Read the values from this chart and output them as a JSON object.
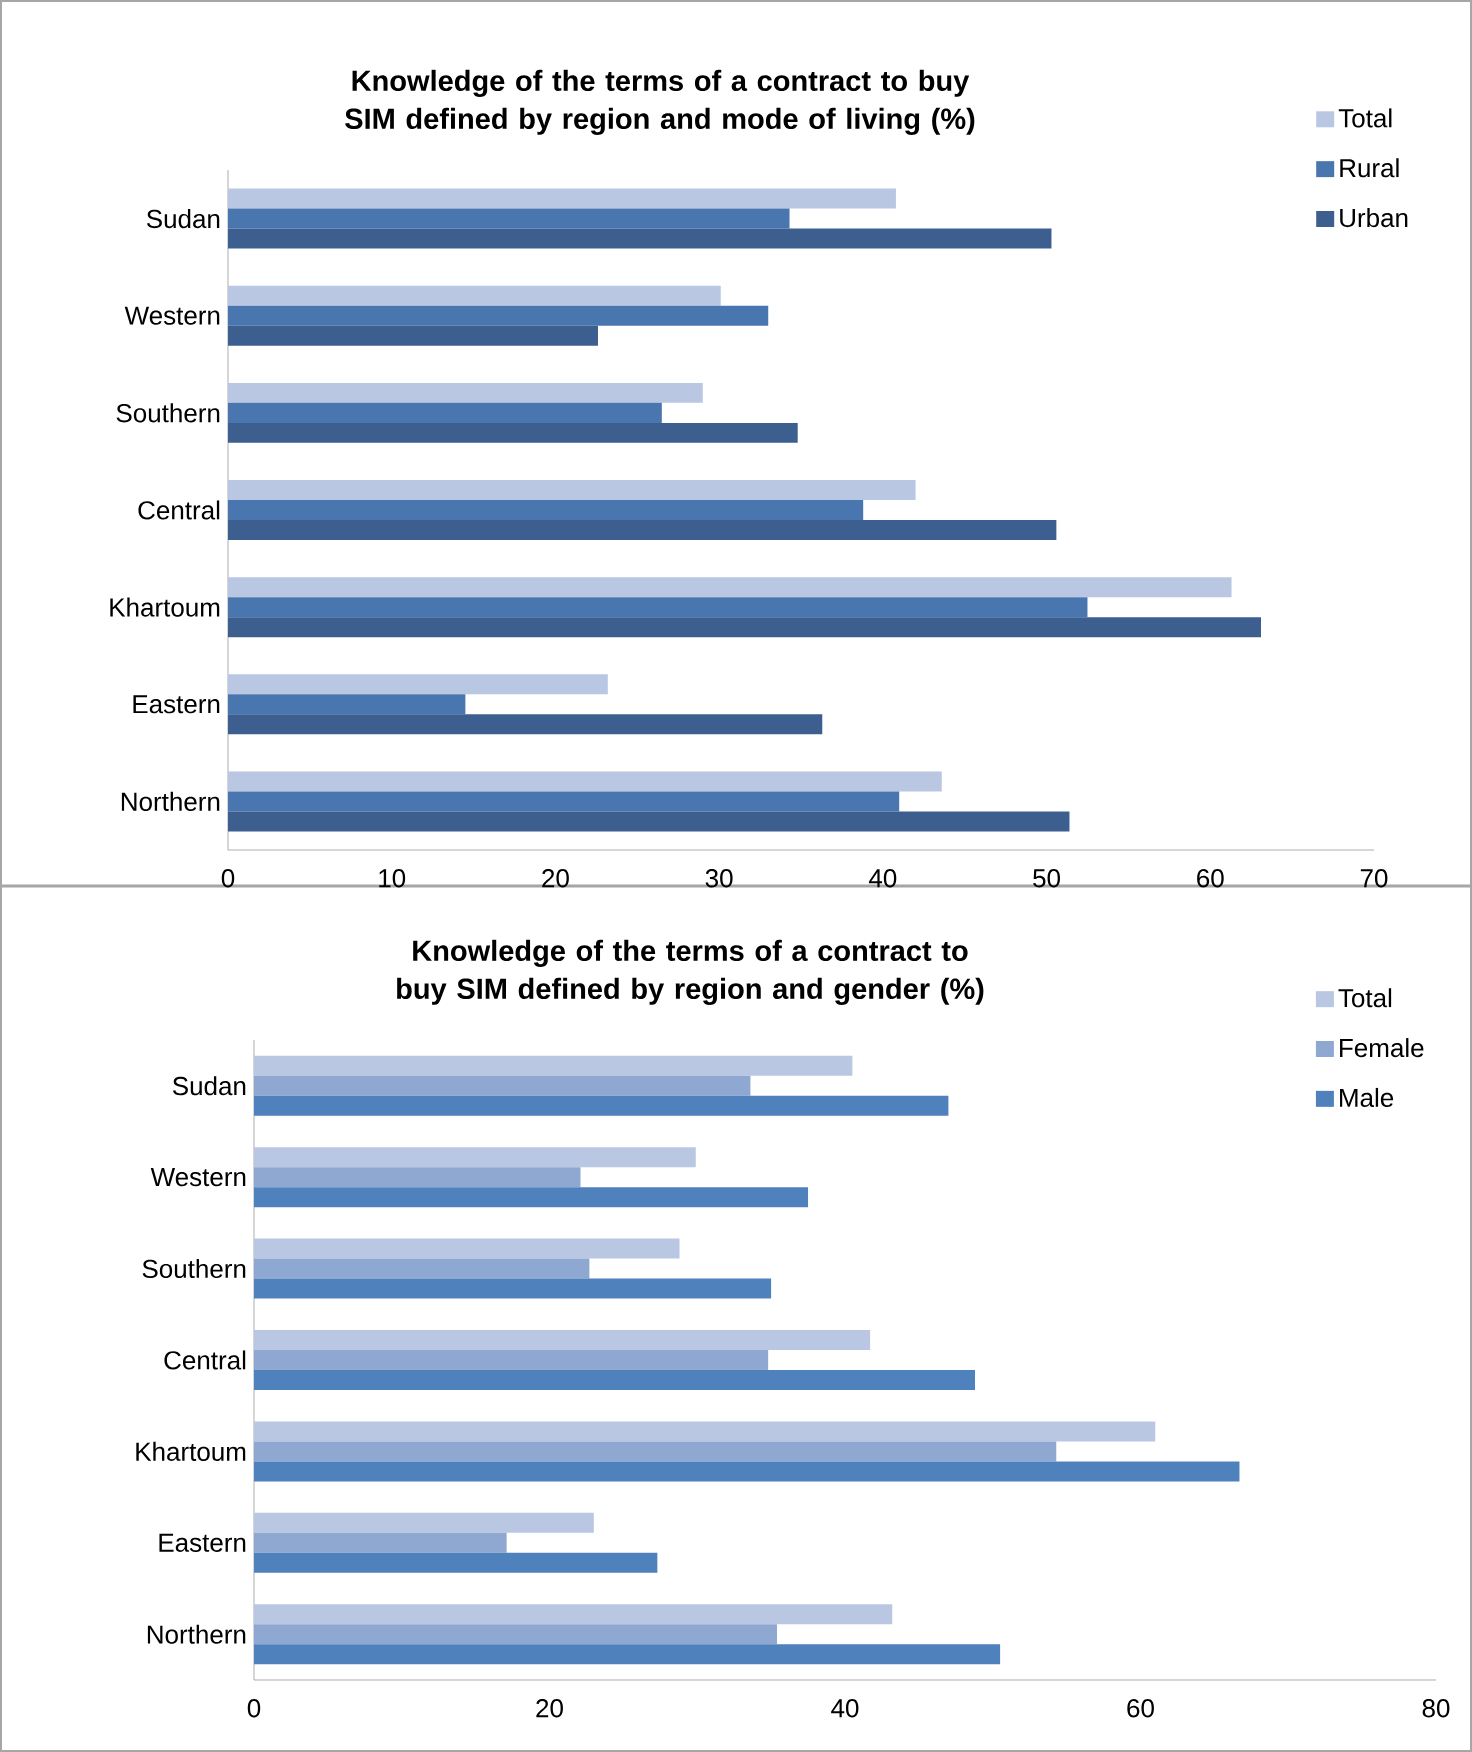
{
  "chart_data": [
    {
      "type": "bar",
      "orientation": "horizontal",
      "title": "Knowledge of the terms of a contract to buy  SIM defined by region and mode of living (%)",
      "categories": [
        "Sudan",
        "Western",
        "Southern",
        "Central",
        "Khartoum",
        "Eastern",
        "Northern"
      ],
      "xlim": [
        0,
        70
      ],
      "xticks": [
        0,
        10,
        20,
        30,
        40,
        50,
        60,
        70
      ],
      "legend": "top right",
      "series": [
        {
          "name": "Total",
          "color": "#b9c7e2",
          "values": [
            40.8,
            30.1,
            29.0,
            42.0,
            61.3,
            23.2,
            43.6
          ]
        },
        {
          "name": "Rural",
          "color": "#4a76b0",
          "values": [
            34.3,
            33.0,
            26.5,
            38.8,
            52.5,
            14.5,
            41.0
          ]
        },
        {
          "name": "Urban",
          "color": "#3c5f8f",
          "values": [
            50.3,
            22.6,
            34.8,
            50.6,
            63.1,
            36.3,
            51.4
          ]
        }
      ]
    },
    {
      "type": "bar",
      "orientation": "horizontal",
      "title": "Knowledge of the terms of a contract to buy  SIM defined by region and gender (%)",
      "categories": [
        "Sudan",
        "Western",
        "Southern",
        "Central",
        "Khartoum",
        "Eastern",
        "Northern"
      ],
      "xlim": [
        0,
        80
      ],
      "xticks": [
        0,
        20,
        40,
        60,
        80
      ],
      "legend": "top right",
      "series": [
        {
          "name": "Total",
          "color": "#b9c7e2",
          "values": [
            40.5,
            29.9,
            28.8,
            41.7,
            61.0,
            23.0,
            43.2
          ]
        },
        {
          "name": "Female",
          "color": "#8fa8d2",
          "values": [
            33.6,
            22.1,
            22.7,
            34.8,
            54.3,
            17.1,
            35.4
          ]
        },
        {
          "name": "Male",
          "color": "#4f81bd",
          "values": [
            47.0,
            37.5,
            35.0,
            48.8,
            66.7,
            27.3,
            50.5
          ]
        }
      ]
    }
  ]
}
